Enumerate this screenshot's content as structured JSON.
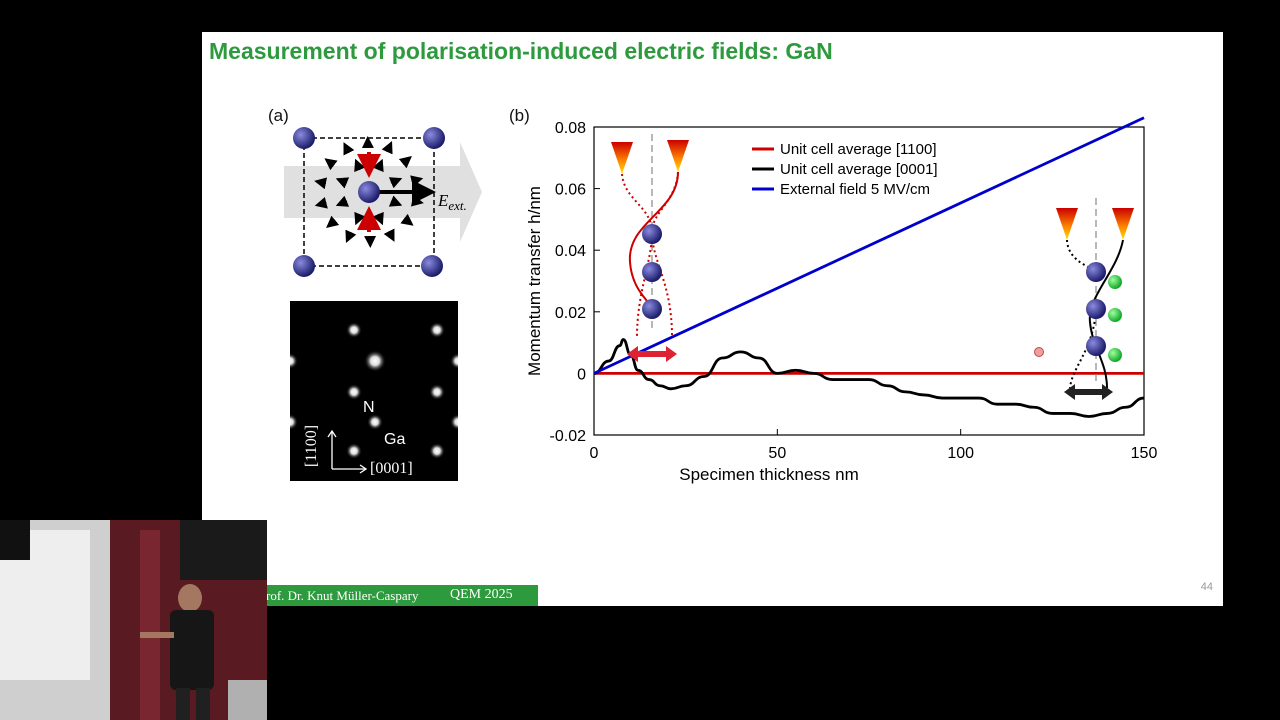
{
  "slide": {
    "title": "Measurement of polarisation-induced electric fields: GaN",
    "panel_a_label": "(a)",
    "panel_b_label": "(b)",
    "field_label": "E",
    "field_subscript": "ext.",
    "diffraction_labels": {
      "n": "N",
      "ga": "Ga",
      "axis_vertical": "[1100]",
      "axis_horizontal": "[0001]"
    },
    "footer_author": "rof. Dr. Knut Müller-Caspary",
    "footer_conference": "QEM 2025",
    "page_number": "44"
  },
  "colors": {
    "title_green": "#2e9a3e",
    "series_red": "#cc0000",
    "series_black": "#000000",
    "series_blue": "#0000cc",
    "atom_blue": "#2a2a8a"
  },
  "chart_data": {
    "type": "line",
    "xlabel": "Specimen thickness nm",
    "ylabel": "Momentum transfer h/nm",
    "xlim": [
      0,
      150
    ],
    "ylim": [
      -0.02,
      0.08
    ],
    "xticks": [
      "0",
      "50",
      "100",
      "150"
    ],
    "yticks": [
      "-0.02",
      "0",
      "0.02",
      "0.04",
      "0.06",
      "0.08"
    ],
    "legend_position": "top-center",
    "series": [
      {
        "name": "Unit cell average [1100]",
        "color": "#cc0000",
        "x": [
          0,
          150
        ],
        "y": [
          0,
          0
        ]
      },
      {
        "name": "Unit cell average [0001]",
        "color": "#000000",
        "x": [
          0,
          4,
          7,
          8,
          10,
          12,
          15,
          18,
          21,
          25,
          30,
          35,
          40,
          45,
          50,
          55,
          60,
          65,
          70,
          75,
          80,
          85,
          90,
          95,
          100,
          105,
          110,
          115,
          120,
          125,
          130,
          135,
          140,
          145,
          150
        ],
        "y": [
          0,
          0.004,
          0.009,
          0.011,
          0.006,
          0.001,
          -0.002,
          -0.004,
          -0.005,
          -0.004,
          -0.001,
          0.005,
          0.007,
          0.005,
          0.0,
          0.001,
          0.0,
          -0.002,
          -0.002,
          -0.002,
          -0.004,
          -0.006,
          -0.007,
          -0.008,
          -0.008,
          -0.008,
          -0.01,
          -0.01,
          -0.011,
          -0.013,
          -0.013,
          -0.014,
          -0.013,
          -0.011,
          -0.008
        ]
      },
      {
        "name": "External field 5 MV/cm",
        "color": "#0000cc",
        "x": [
          0,
          150
        ],
        "y": [
          0,
          0.083
        ]
      }
    ]
  }
}
